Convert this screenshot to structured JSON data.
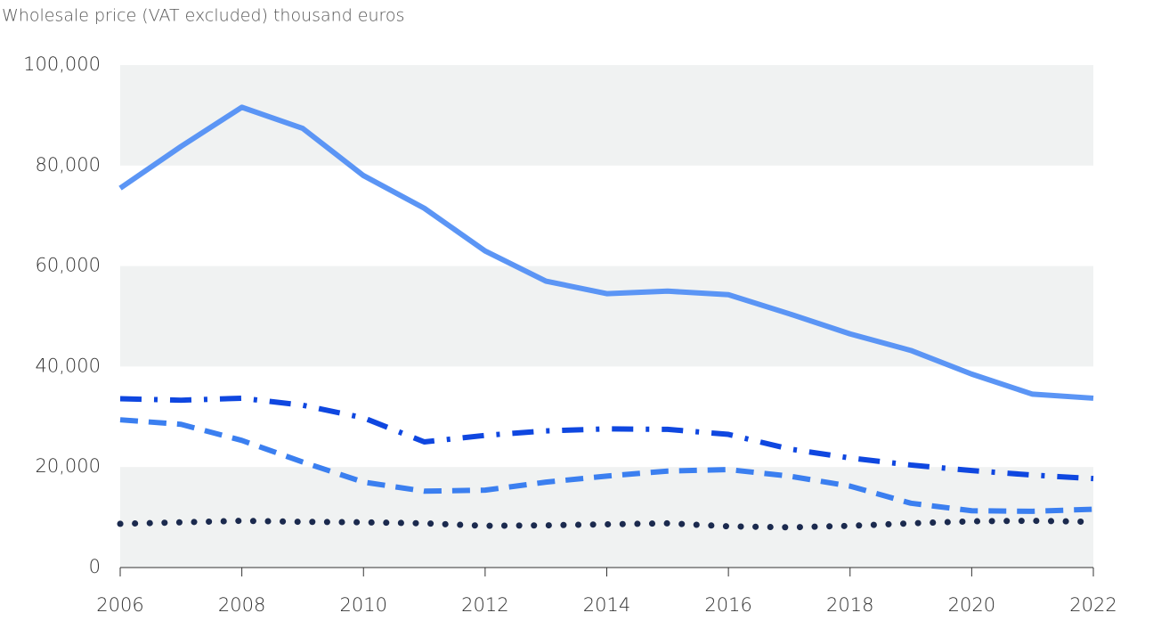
{
  "chart_data": {
    "type": "line",
    "ylabel": "Wholesale price (VAT excluded) thousand euros",
    "x": [
      2006,
      2007,
      2008,
      2009,
      2010,
      2011,
      2012,
      2013,
      2014,
      2015,
      2016,
      2017,
      2018,
      2019,
      2020,
      2021,
      2022
    ],
    "series": [
      {
        "color": "#5b95f5",
        "dash": "solid",
        "values": [
          75500,
          83800,
          91600,
          87400,
          78000,
          71500,
          63000,
          57000,
          54500,
          55000,
          54300,
          50500,
          46500,
          43200,
          38500,
          34500,
          33700
        ]
      },
      {
        "color": "#0f47e0",
        "dash": "dashdot",
        "values": [
          33600,
          33300,
          33700,
          32300,
          29800,
          25000,
          26300,
          27200,
          27600,
          27500,
          26500,
          23600,
          21800,
          20400,
          19300,
          18400,
          17700
        ]
      },
      {
        "color": "#3b7ff0",
        "dash": "dashed",
        "values": [
          29400,
          28500,
          25300,
          21000,
          17000,
          15200,
          15400,
          17000,
          18200,
          19200,
          19500,
          18200,
          16200,
          12800,
          11300,
          11200,
          11600
        ]
      },
      {
        "color": "#1b2a4e",
        "dash": "dotted",
        "values": [
          8700,
          9000,
          9300,
          9100,
          9000,
          8800,
          8300,
          8400,
          8600,
          8800,
          8200,
          8000,
          8300,
          8800,
          9200,
          9300,
          9100
        ]
      }
    ],
    "xlim": [
      2006,
      2022
    ],
    "xticks": [
      2006,
      2008,
      2010,
      2012,
      2014,
      2016,
      2018,
      2020,
      2022
    ],
    "ylim": [
      0,
      100000
    ],
    "yticks": [
      0,
      {
        "value": 20000,
        "label": "20,000"
      },
      {
        "value": 40000,
        "label": "40,000"
      },
      {
        "value": 60000,
        "label": "60,000"
      },
      {
        "value": 80000,
        "label": "80,000"
      },
      {
        "value": 100000,
        "label": "100,000"
      }
    ],
    "band_color": "#f0f2f2"
  }
}
